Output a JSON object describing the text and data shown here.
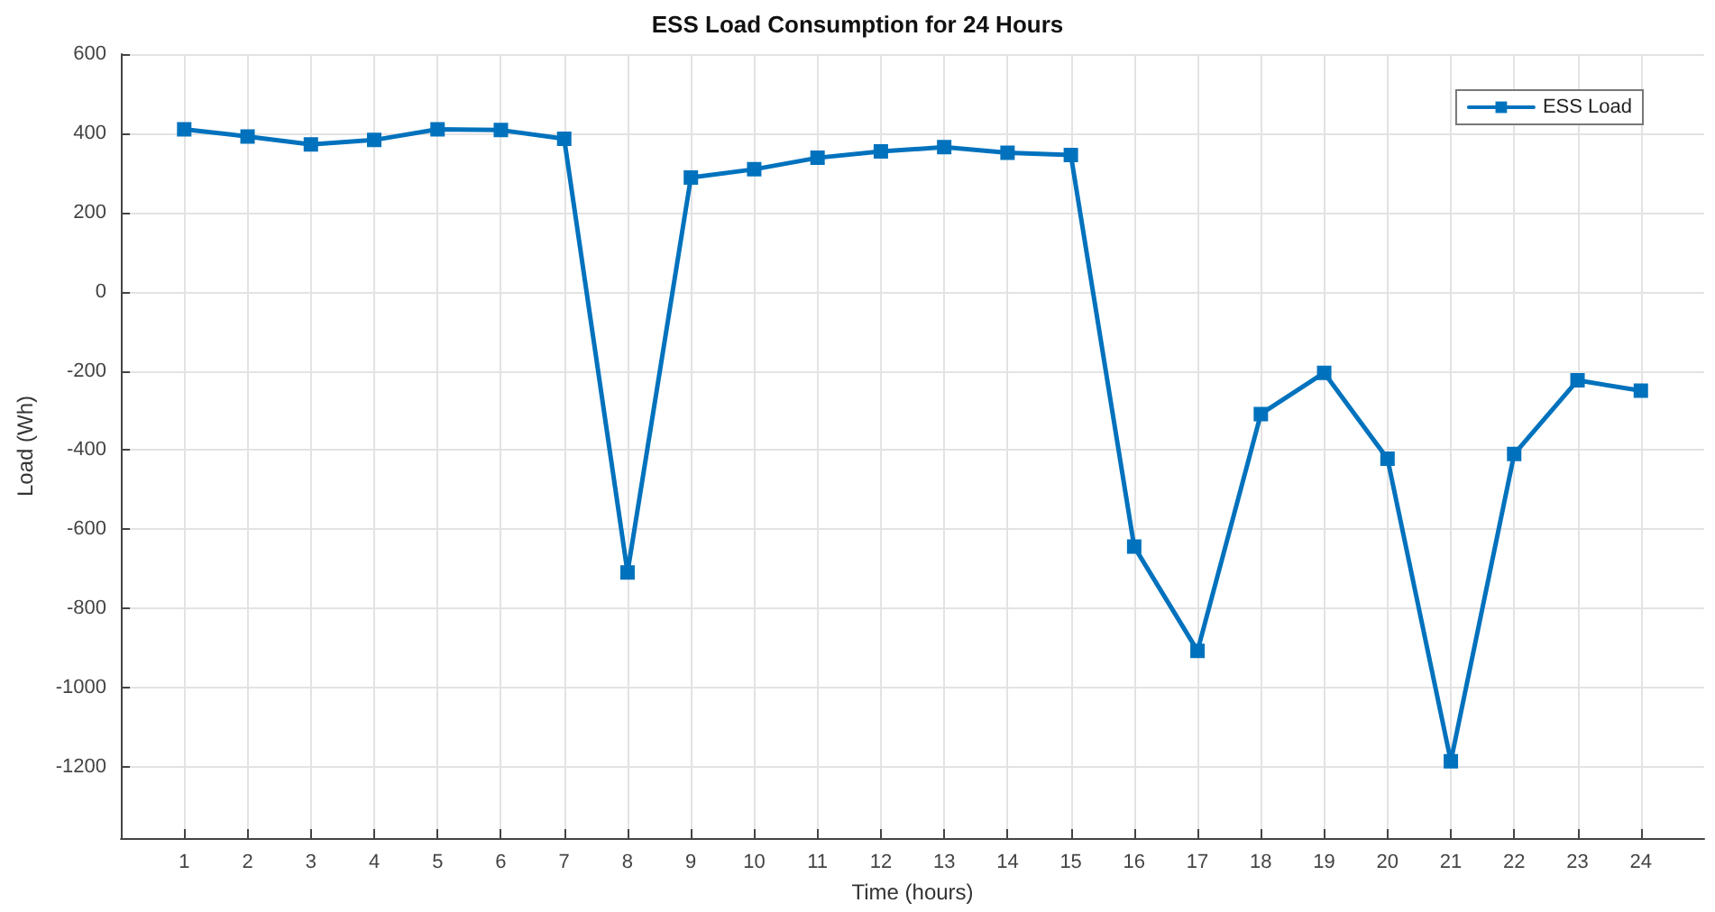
{
  "chart_data": {
    "type": "line",
    "title": "ESS Load Consumption for 24 Hours",
    "xlabel": "Time (hours)",
    "ylabel": "Load (Wh)",
    "x": [
      1,
      2,
      3,
      4,
      5,
      6,
      7,
      8,
      9,
      10,
      11,
      12,
      13,
      14,
      15,
      16,
      17,
      18,
      19,
      20,
      21,
      22,
      23,
      24
    ],
    "series": [
      {
        "name": "ESS Load",
        "color": "#0072bd",
        "values": [
          410,
          392,
          372,
          383,
          410,
          408,
          386,
          -709,
          288,
          309,
          338,
          354,
          365,
          351,
          345,
          -644,
          -907,
          -309,
          -205,
          -422,
          -1186,
          -410,
          -224,
          -250
        ]
      }
    ],
    "xlim": [
      0,
      25
    ],
    "xticks": [
      1,
      2,
      3,
      4,
      5,
      6,
      7,
      8,
      9,
      10,
      11,
      12,
      13,
      14,
      15,
      16,
      17,
      18,
      19,
      20,
      21,
      22,
      23,
      24
    ],
    "ylim": [
      -1380,
      600
    ],
    "yticks": [
      -1200,
      -1000,
      -800,
      -600,
      -400,
      -200,
      0,
      200,
      400,
      600
    ],
    "grid": true,
    "legend": "top right",
    "marker": "square",
    "line_style": "solid"
  }
}
